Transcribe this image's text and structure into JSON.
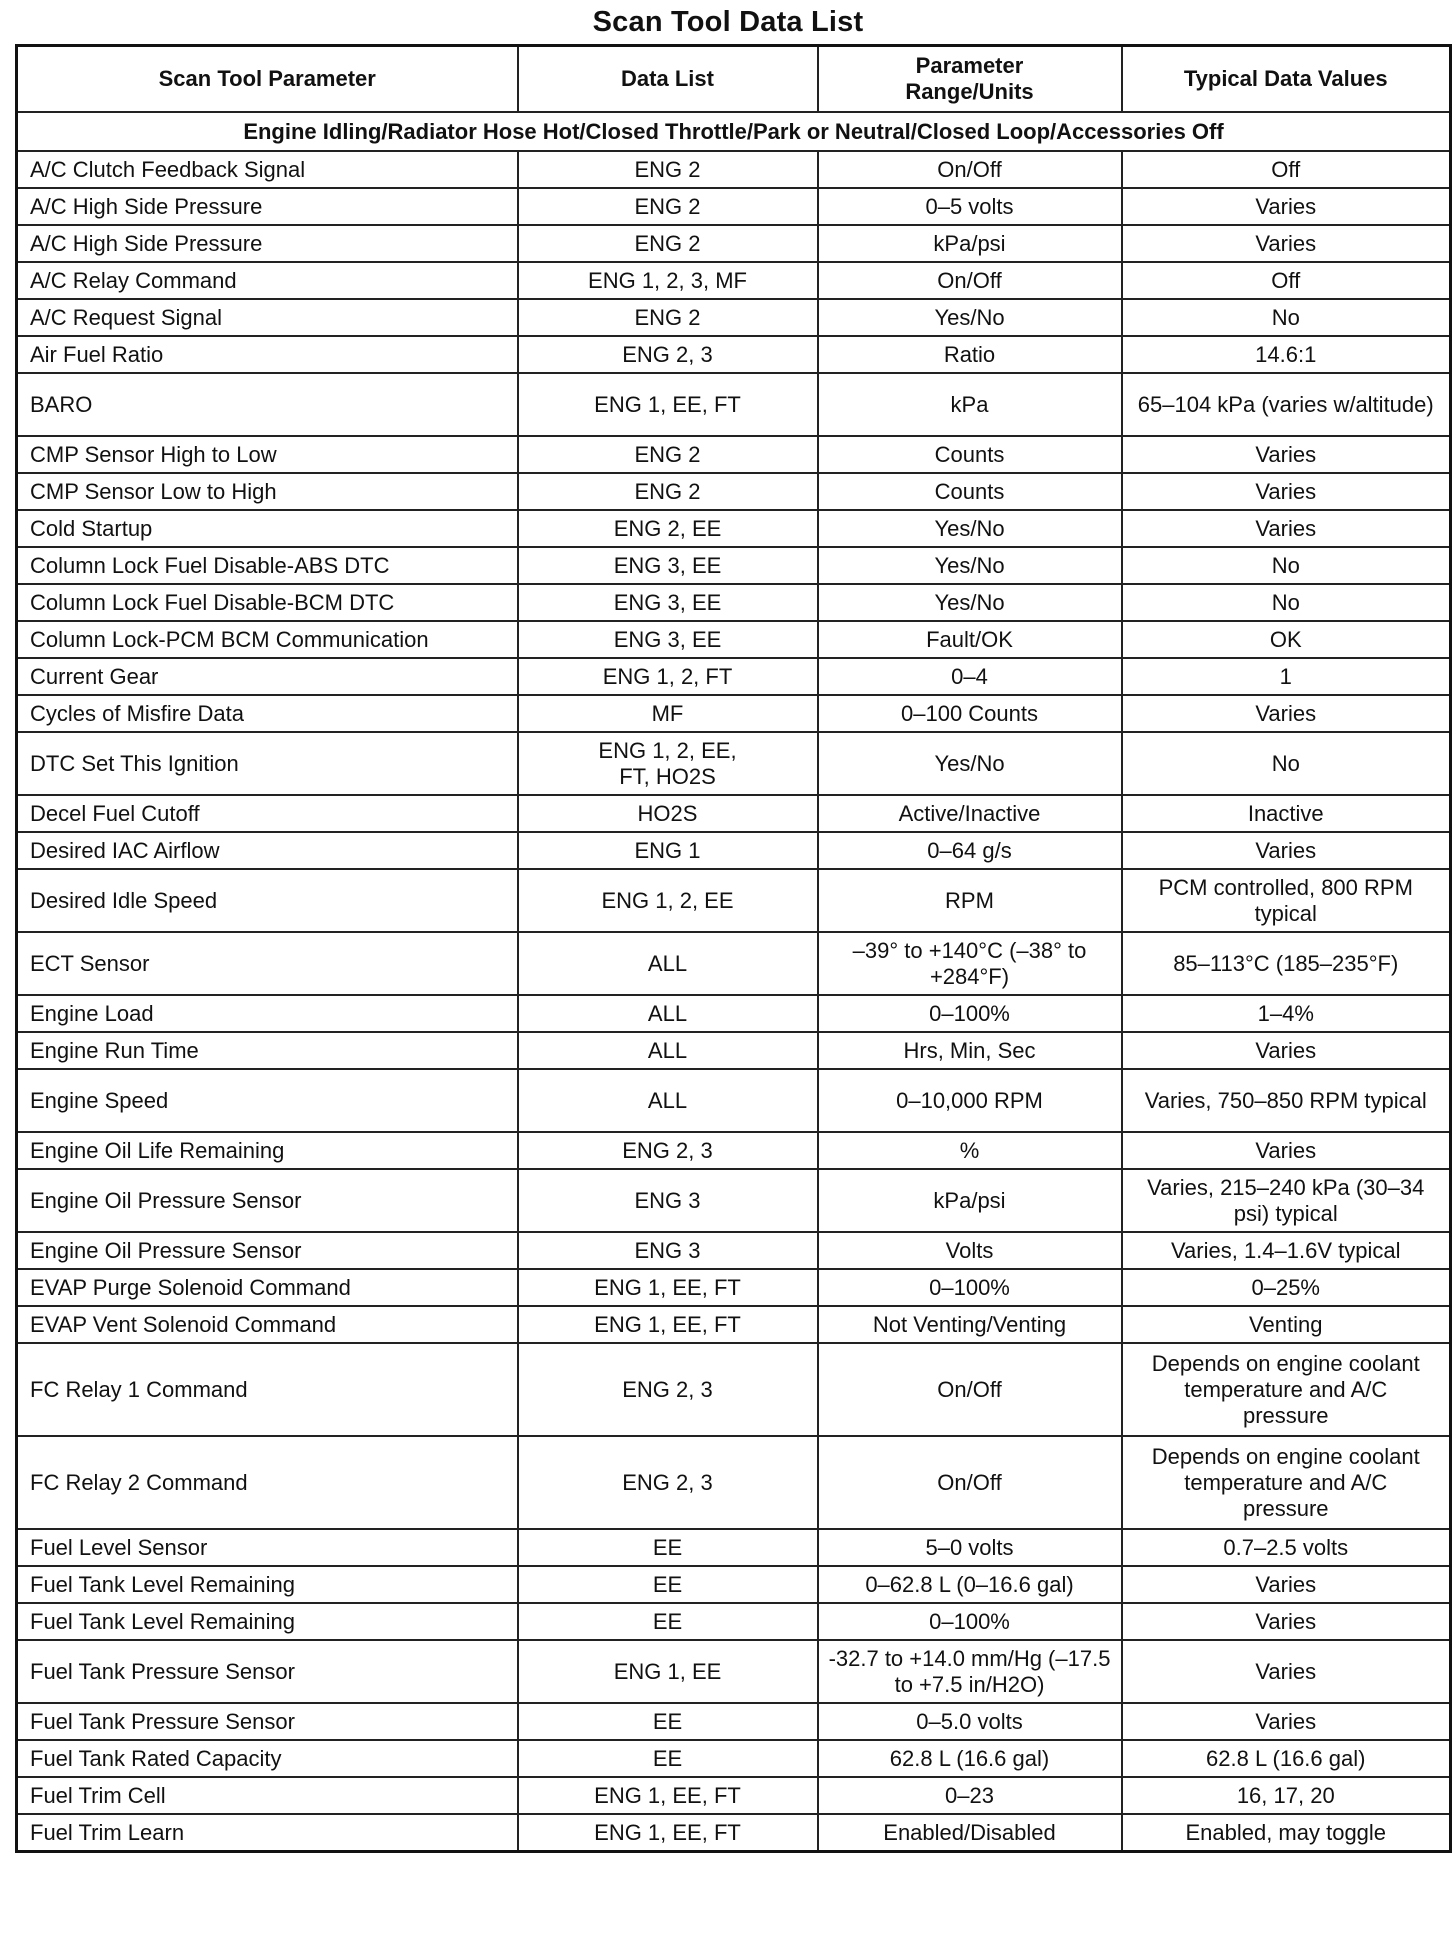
{
  "title": "Scan Tool Data List",
  "headers": [
    "Scan Tool Parameter",
    "Data List",
    "Parameter Range/Units",
    "Typical Data Values"
  ],
  "section": "Engine Idling/Radiator Hose Hot/Closed Throttle/Park or Neutral/Closed Loop/Accessories Off",
  "rows": [
    [
      "A/C Clutch Feedback Signal",
      "ENG 2",
      "On/Off",
      "Off"
    ],
    [
      "A/C High Side Pressure",
      "ENG 2",
      "0–5 volts",
      "Varies"
    ],
    [
      "A/C High Side Pressure",
      "ENG 2",
      "kPa/psi",
      "Varies"
    ],
    [
      "A/C Relay Command",
      "ENG 1, 2, 3, MF",
      "On/Off",
      "Off"
    ],
    [
      "A/C Request Signal",
      "ENG 2",
      "Yes/No",
      "No"
    ],
    [
      "Air Fuel Ratio",
      "ENG 2, 3",
      "Ratio",
      "14.6:1"
    ],
    [
      "BARO",
      "ENG 1, EE, FT",
      "kPa",
      "65–104 kPa (varies w/altitude)"
    ],
    [
      "CMP Sensor High to Low",
      "ENG 2",
      "Counts",
      "Varies"
    ],
    [
      "CMP Sensor Low to High",
      "ENG 2",
      "Counts",
      "Varies"
    ],
    [
      "Cold Startup",
      "ENG 2, EE",
      "Yes/No",
      "Varies"
    ],
    [
      "Column Lock Fuel Disable-ABS DTC",
      "ENG 3, EE",
      "Yes/No",
      "No"
    ],
    [
      "Column Lock Fuel Disable-BCM DTC",
      "ENG 3, EE",
      "Yes/No",
      "No"
    ],
    [
      "Column Lock-PCM BCM Communication",
      "ENG 3, EE",
      "Fault/OK",
      "OK"
    ],
    [
      "Current Gear",
      "ENG 1, 2, FT",
      "0–4",
      "1"
    ],
    [
      "Cycles of Misfire Data",
      "MF",
      "0–100 Counts",
      "Varies"
    ],
    [
      "DTC Set This Ignition",
      "ENG 1, 2, EE, FT, HO2S",
      "Yes/No",
      "No"
    ],
    [
      "Decel Fuel Cutoff",
      "HO2S",
      "Active/Inactive",
      "Inactive"
    ],
    [
      "Desired IAC Airflow",
      "ENG 1",
      "0–64 g/s",
      "Varies"
    ],
    [
      "Desired Idle Speed",
      "ENG 1, 2, EE",
      "RPM",
      "PCM controlled, 800 RPM typical"
    ],
    [
      "ECT Sensor",
      "ALL",
      "–39° to +140°C (–38° to +284°F)",
      "85–113°C (185–235°F)"
    ],
    [
      "Engine Load",
      "ALL",
      "0–100%",
      "1–4%"
    ],
    [
      "Engine Run Time",
      "ALL",
      "Hrs, Min, Sec",
      "Varies"
    ],
    [
      "Engine Speed",
      "ALL",
      "0–10,000 RPM",
      "Varies, 750–850 RPM typical"
    ],
    [
      "Engine Oil Life Remaining",
      "ENG 2, 3",
      "%",
      "Varies"
    ],
    [
      "Engine Oil Pressure Sensor",
      "ENG 3",
      "kPa/psi",
      "Varies, 215–240 kPa (30–34 psi) typical"
    ],
    [
      "Engine Oil Pressure Sensor",
      "ENG 3",
      "Volts",
      "Varies, 1.4–1.6V typical"
    ],
    [
      "EVAP Purge Solenoid Command",
      "ENG 1, EE, FT",
      "0–100%",
      "0–25%"
    ],
    [
      "EVAP Vent Solenoid Command",
      "ENG 1, EE, FT",
      "Not Venting/Venting",
      "Venting"
    ],
    [
      "FC Relay 1 Command",
      "ENG 2, 3",
      "On/Off",
      "Depends on engine coolant temperature and A/C pressure"
    ],
    [
      "FC Relay 2 Command",
      "ENG 2, 3",
      "On/Off",
      "Depends on engine coolant temperature and A/C pressure"
    ],
    [
      "Fuel Level Sensor",
      "EE",
      "5–0 volts",
      "0.7–2.5 volts"
    ],
    [
      "Fuel Tank Level Remaining",
      "EE",
      "0–62.8 L (0–16.6 gal)",
      "Varies"
    ],
    [
      "Fuel Tank Level Remaining",
      "EE",
      "0–100%",
      "Varies"
    ],
    [
      "Fuel Tank Pressure Sensor",
      "ENG 1, EE",
      "-32.7 to +14.0 mm/Hg (–17.5 to +7.5 in/H2O)",
      "Varies"
    ],
    [
      "Fuel Tank Pressure Sensor",
      "EE",
      "0–5.0 volts",
      "Varies"
    ],
    [
      "Fuel Tank Rated Capacity",
      "EE",
      "62.8 L (16.6 gal)",
      "62.8 L (16.6 gal)"
    ],
    [
      "Fuel Trim Cell",
      "ENG 1, EE, FT",
      "0–23",
      "16, 17, 20"
    ],
    [
      "Fuel Trim Learn",
      "ENG 1, EE, FT",
      "Enabled/Disabled",
      "Enabled, may toggle"
    ]
  ]
}
